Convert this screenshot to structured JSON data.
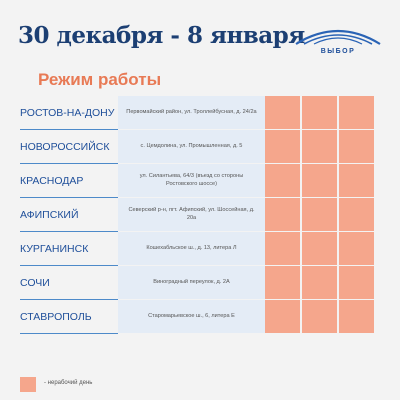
{
  "header": {
    "title": "30 декабря - 8 января",
    "subtitle": "Режим работы"
  },
  "logo": {
    "text": "ВЫБОР"
  },
  "rows": [
    {
      "city": "РОСТОВ-НА-ДОНУ",
      "address": "Первомайский район, ул. Троллейбусная, д. 24/2а"
    },
    {
      "city": "НОВОРОССИЙСК",
      "address": "с. Цемдолина, ул. Промышленная, д. 5"
    },
    {
      "city": "КРАСНОДАР",
      "address": "ул. Силантьева, 64/3 (въезд со стороны Ростовского шоссе)"
    },
    {
      "city": "АФИПСКИЙ",
      "address": "Северский р-н, пгт. Афипский, ул. Шоссейная, д. 20а"
    },
    {
      "city": "КУРГАНИНСК",
      "address": "Кошехабльское ш., д. 13, литера Л"
    },
    {
      "city": "СОЧИ",
      "address": "Виноградный переулок, д. 2А"
    },
    {
      "city": "СТАВРОПОЛЬ",
      "address": "Старомарьевское ш., 6, литера Е"
    }
  ],
  "legend": {
    "text": "- нерабочий день"
  }
}
